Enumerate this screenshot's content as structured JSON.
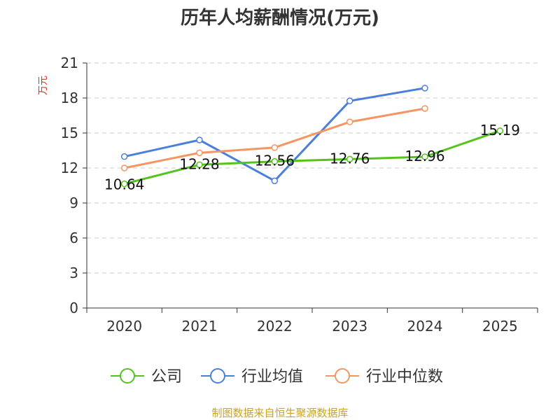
{
  "chart_data": {
    "type": "line",
    "title": "历年人均薪酬情况(万元)",
    "ylabel": "万元",
    "xlabel": "",
    "categories": [
      "2020",
      "2021",
      "2022",
      "2023",
      "2024",
      "2025"
    ],
    "ylim": [
      0,
      21
    ],
    "yticks": [
      "0",
      "3",
      "6",
      "9",
      "12",
      "15",
      "18",
      "21"
    ],
    "series": [
      {
        "name": "公司",
        "color": "#52c41a",
        "values": [
          10.64,
          12.28,
          12.56,
          12.76,
          12.96,
          15.19
        ],
        "labels": [
          "10.64",
          "12.28",
          "12.56",
          "12.76",
          "12.96",
          "15.19"
        ]
      },
      {
        "name": "行业均值",
        "color": "#4a7fdc",
        "values": [
          12.98,
          14.4,
          10.9,
          17.75,
          18.85,
          null
        ]
      },
      {
        "name": "行业中位数",
        "color": "#f59561",
        "values": [
          12.0,
          13.3,
          13.75,
          15.95,
          17.1,
          null
        ]
      }
    ],
    "grid": true,
    "legend_position": "bottom"
  },
  "source": "制图数据来自恒生聚源数据库",
  "colors": {
    "axis": "#333333",
    "grid": "#cccccc",
    "ylabel": "#e0302f",
    "source": "#c9a227"
  }
}
